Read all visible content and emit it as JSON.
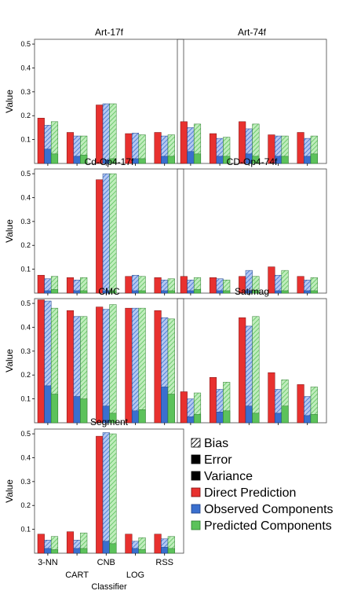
{
  "chart_data": {
    "type": "bar",
    "ylabel": "Value",
    "xlabel": "Classifier",
    "categories": [
      "3-NN",
      "CART",
      "CNB",
      "LOG",
      "RSS"
    ],
    "yticks": [
      0.1,
      0.2,
      0.3,
      0.4,
      0.5
    ],
    "ylim": [
      0,
      0.52
    ],
    "grid": false,
    "legend_position": "bottom-right",
    "series_names": [
      "Direct Prediction",
      "Observed Components",
      "Predicted Components"
    ],
    "legend": {
      "pattern_items": [
        "Bias",
        "Error",
        "Variance"
      ],
      "color_items": [
        "Direct Prediction",
        "Observed Components",
        "Predicted Components"
      ]
    },
    "colors": {
      "direct": "#e8312f",
      "observed": "#3a6fce",
      "predicted": "#5cc25b",
      "observed_hatch_bg": "#b4c8f2",
      "predicted_hatch_bg": "#c0edbd"
    },
    "panels": [
      {
        "title": "Art-17f",
        "direct": [
          0.19,
          0.13,
          0.245,
          0.125,
          0.13
        ],
        "observed_total": [
          0.16,
          0.115,
          0.25,
          0.127,
          0.115
        ],
        "observed_variance": [
          0.06,
          0.03,
          0.015,
          0.02,
          0.03
        ],
        "predicted_total": [
          0.175,
          0.115,
          0.25,
          0.12,
          0.12
        ],
        "predicted_variance": [
          0.04,
          0.035,
          0.02,
          0.02,
          0.03
        ]
      },
      {
        "title": "Art-74f",
        "direct": [
          0.175,
          0.125,
          0.175,
          0.12,
          0.13
        ],
        "observed_total": [
          0.15,
          0.105,
          0.145,
          0.115,
          0.105
        ],
        "observed_variance": [
          0.05,
          0.03,
          0.04,
          0.03,
          0.03
        ],
        "predicted_total": [
          0.165,
          0.11,
          0.165,
          0.115,
          0.115
        ],
        "predicted_variance": [
          0.04,
          0.03,
          0.03,
          0.03,
          0.04
        ]
      },
      {
        "title": "Cd-Op4-17f",
        "direct": [
          0.075,
          0.065,
          0.475,
          0.07,
          0.065
        ],
        "observed_total": [
          0.06,
          0.055,
          0.5,
          0.075,
          0.055
        ],
        "observed_variance": [
          0.01,
          0.01,
          0.01,
          0.01,
          0.01
        ],
        "predicted_total": [
          0.07,
          0.065,
          0.5,
          0.07,
          0.06
        ],
        "predicted_variance": [
          0.015,
          0.01,
          0.01,
          0.01,
          0.01
        ]
      },
      {
        "title": "CD-Op4-74f",
        "direct": [
          0.07,
          0.065,
          0.07,
          0.11,
          0.07
        ],
        "observed_total": [
          0.055,
          0.06,
          0.095,
          0.075,
          0.055
        ],
        "observed_variance": [
          0.01,
          0.01,
          0.01,
          0.01,
          0.01
        ],
        "predicted_total": [
          0.065,
          0.055,
          0.07,
          0.095,
          0.065
        ],
        "predicted_variance": [
          0.015,
          0.01,
          0.01,
          0.01,
          0.01
        ]
      },
      {
        "title": "CMC",
        "direct": [
          0.515,
          0.47,
          0.485,
          0.48,
          0.47
        ],
        "observed_total": [
          0.51,
          0.445,
          0.475,
          0.48,
          0.44
        ],
        "observed_variance": [
          0.155,
          0.11,
          0.07,
          0.05,
          0.15
        ],
        "predicted_total": [
          0.48,
          0.445,
          0.495,
          0.48,
          0.435
        ],
        "predicted_variance": [
          0.12,
          0.1,
          0.04,
          0.055,
          0.12
        ]
      },
      {
        "title": "Satimag",
        "direct": [
          0.13,
          0.19,
          0.44,
          0.21,
          0.16
        ],
        "observed_total": [
          0.1,
          0.14,
          0.405,
          0.14,
          0.11
        ],
        "observed_variance": [
          0.025,
          0.045,
          0.07,
          0.04,
          0.03
        ],
        "predicted_total": [
          0.125,
          0.17,
          0.445,
          0.18,
          0.15
        ],
        "predicted_variance": [
          0.035,
          0.05,
          0.04,
          0.07,
          0.035
        ]
      },
      {
        "title": "Segment",
        "direct": [
          0.08,
          0.09,
          0.49,
          0.08,
          0.08
        ],
        "observed_total": [
          0.055,
          0.055,
          0.505,
          0.05,
          0.06
        ],
        "observed_variance": [
          0.02,
          0.02,
          0.05,
          0.02,
          0.025
        ],
        "predicted_total": [
          0.07,
          0.085,
          0.5,
          0.065,
          0.07
        ],
        "predicted_variance": [
          0.015,
          0.02,
          0.04,
          0.015,
          0.02
        ]
      }
    ]
  }
}
